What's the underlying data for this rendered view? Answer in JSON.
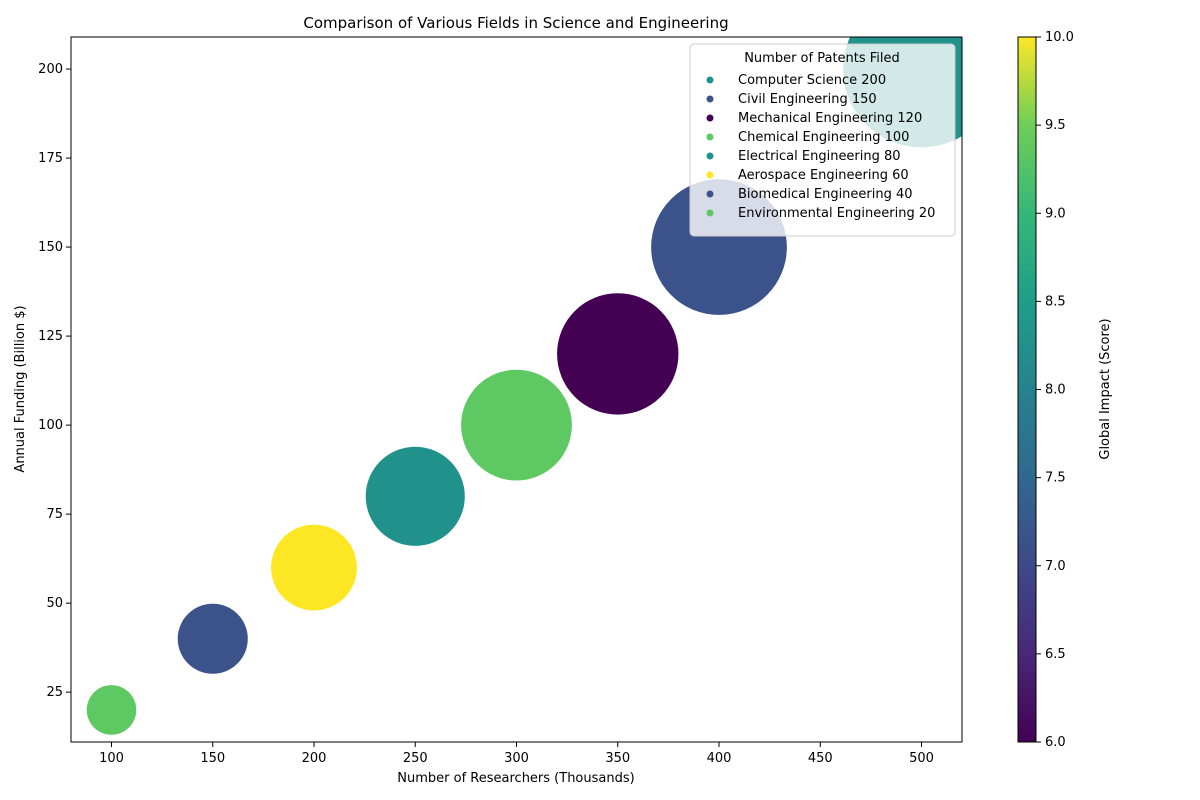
{
  "chart_data": {
    "type": "scatter",
    "title": "Comparison of Various Fields in Science and Engineering",
    "xlabel": "Number of Researchers (Thousands)",
    "ylabel": "Annual Funding (Billion $)",
    "xlim": [
      80,
      520
    ],
    "ylim": [
      11,
      209
    ],
    "xticks": [
      100,
      150,
      200,
      250,
      300,
      350,
      400,
      450,
      500
    ],
    "yticks": [
      25,
      50,
      75,
      100,
      125,
      150,
      175,
      200
    ],
    "grid": false,
    "colorbar": {
      "label": "Global Impact (Score)",
      "range": [
        6.0,
        10.0
      ],
      "ticks": [
        "6.0",
        "6.5",
        "7.0",
        "7.5",
        "8.0",
        "8.5",
        "9.0",
        "9.5",
        "10.0"
      ],
      "colormap": "viridis"
    },
    "legend": {
      "title": "Number of Patents Filed",
      "placement": "top-right",
      "entries": [
        "Computer Science 200",
        "Civil Engineering 150",
        "Mechanical Engineering 120",
        "Chemical Engineering 100",
        "Electrical Engineering 80",
        "Aerospace Engineering 60",
        "Biomedical Engineering 40",
        "Environmental Engineering 20"
      ]
    },
    "points": [
      {
        "x": 500,
        "y": 200,
        "size": 200,
        "impact": 8.0,
        "color": "#21918c"
      },
      {
        "x": 400,
        "y": 150,
        "size": 150,
        "impact": 7.0,
        "color": "#3b528b"
      },
      {
        "x": 350,
        "y": 120,
        "size": 120,
        "impact": 6.0,
        "color": "#440154"
      },
      {
        "x": 300,
        "y": 100,
        "size": 100,
        "impact": 9.0,
        "color": "#5ec962"
      },
      {
        "x": 250,
        "y": 80,
        "size": 80,
        "impact": 8.0,
        "color": "#21918c"
      },
      {
        "x": 200,
        "y": 60,
        "size": 60,
        "impact": 10.0,
        "color": "#fde725"
      },
      {
        "x": 150,
        "y": 40,
        "size": 40,
        "impact": 7.0,
        "color": "#3b528b"
      },
      {
        "x": 100,
        "y": 20,
        "size": 20,
        "impact": 9.0,
        "color": "#5ec962"
      }
    ]
  }
}
